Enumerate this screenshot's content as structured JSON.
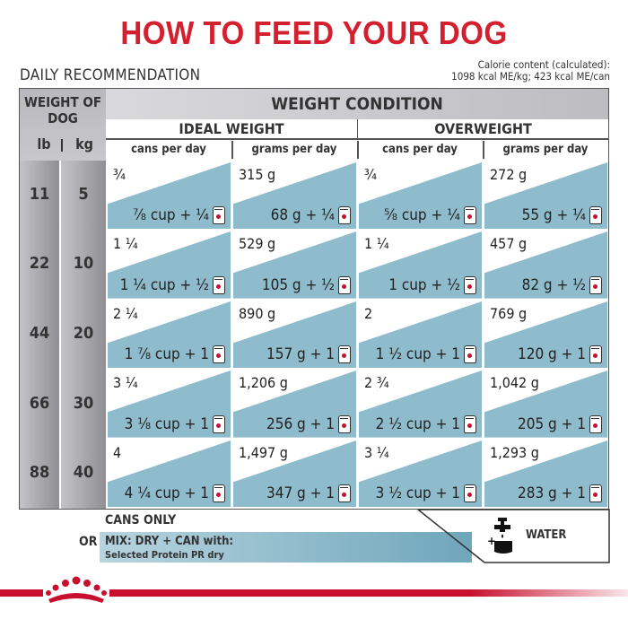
{
  "title": "HOW TO FEED YOUR DOG",
  "daily_recommendation": "DAILY RECOMMENDATION",
  "calorie": {
    "line1": "Calorie content (calculated):",
    "line2": "1098 kcal ME/kg; 423 kcal ME/can"
  },
  "header": {
    "weight_of_dog": "WEIGHT OF DOG",
    "lb": "lb",
    "kg": "kg",
    "weight_condition": "WEIGHT CONDITION",
    "ideal_weight": "IDEAL WEIGHT",
    "overweight": "OVERWEIGHT",
    "cans_per_day": "cans per day",
    "grams_per_day": "grams per day"
  },
  "rows": [
    {
      "lb": "11",
      "kg": "5",
      "ideal_cans": "¾",
      "ideal_cans_mix": "⅞ cup + ¼",
      "ideal_grams": "315 g",
      "ideal_grams_mix": "68 g + ¼",
      "over_cans": "¾",
      "over_cans_mix": "⅝ cup + ¼",
      "over_grams": "272 g",
      "over_grams_mix": "55 g + ¼"
    },
    {
      "lb": "22",
      "kg": "10",
      "ideal_cans": "1 ¼",
      "ideal_cans_mix": "1 ¼ cup + ½",
      "ideal_grams": "529 g",
      "ideal_grams_mix": "105 g + ½",
      "over_cans": "1 ¼",
      "over_cans_mix": "1 cup + ½",
      "over_grams": "457 g",
      "over_grams_mix": "82 g + ½"
    },
    {
      "lb": "44",
      "kg": "20",
      "ideal_cans": "2 ¼",
      "ideal_cans_mix": "1 ⅞ cup + 1",
      "ideal_grams": "890 g",
      "ideal_grams_mix": "157 g + 1",
      "over_cans": "2",
      "over_cans_mix": "1 ½ cup + 1",
      "over_grams": "769 g",
      "over_grams_mix": "120 g + 1"
    },
    {
      "lb": "66",
      "kg": "30",
      "ideal_cans": "3 ¼",
      "ideal_cans_mix": "3 ⅛ cup + 1",
      "ideal_grams": "1,206 g",
      "ideal_grams_mix": "256 g + 1",
      "over_cans": "2 ¾",
      "over_cans_mix": "2 ½ cup + 1",
      "over_grams": "1,042 g",
      "over_grams_mix": "205 g + 1"
    },
    {
      "lb": "88",
      "kg": "40",
      "ideal_cans": "4",
      "ideal_cans_mix": "4 ¼ cup + 1",
      "ideal_grams": "1,497 g",
      "ideal_grams_mix": "347 g + 1",
      "over_cans": "3 ¼",
      "over_cans_mix": "3 ½ cup + 1",
      "over_grams": "1,293 g",
      "over_grams_mix": "283 g + 1"
    }
  ],
  "footer": {
    "cans_only": "CANS ONLY",
    "or": "OR",
    "mix_line1": "MIX: DRY + CAN with:",
    "mix_line2": "Selected Protein PR dry",
    "water": "WATER"
  },
  "colors": {
    "title_red": "#d2202f",
    "blue_band": "#8fbccc",
    "grey_header": "#bdbdc1"
  },
  "icons": [
    "can-icon",
    "water-tap-icon",
    "royal-canin-crown-logo"
  ]
}
